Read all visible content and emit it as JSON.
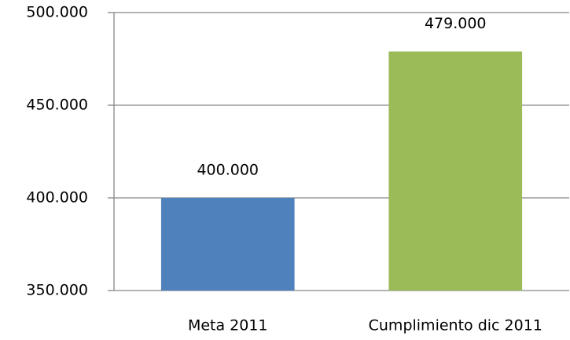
{
  "chart_data": {
    "type": "bar",
    "categories": [
      "Meta 2011",
      "Cumplimiento dic 2011"
    ],
    "values": [
      400000,
      479000
    ],
    "value_labels": [
      "400.000",
      "479.000"
    ],
    "colors": [
      "#4f81bd",
      "#9bbb59"
    ],
    "ylim": [
      350000,
      500000
    ],
    "yticks": [
      {
        "value": 350000,
        "label": "350.000"
      },
      {
        "value": 400000,
        "label": "400.000"
      },
      {
        "value": 450000,
        "label": "450.000"
      },
      {
        "value": 500000,
        "label": "500.000"
      }
    ],
    "grid": true
  }
}
